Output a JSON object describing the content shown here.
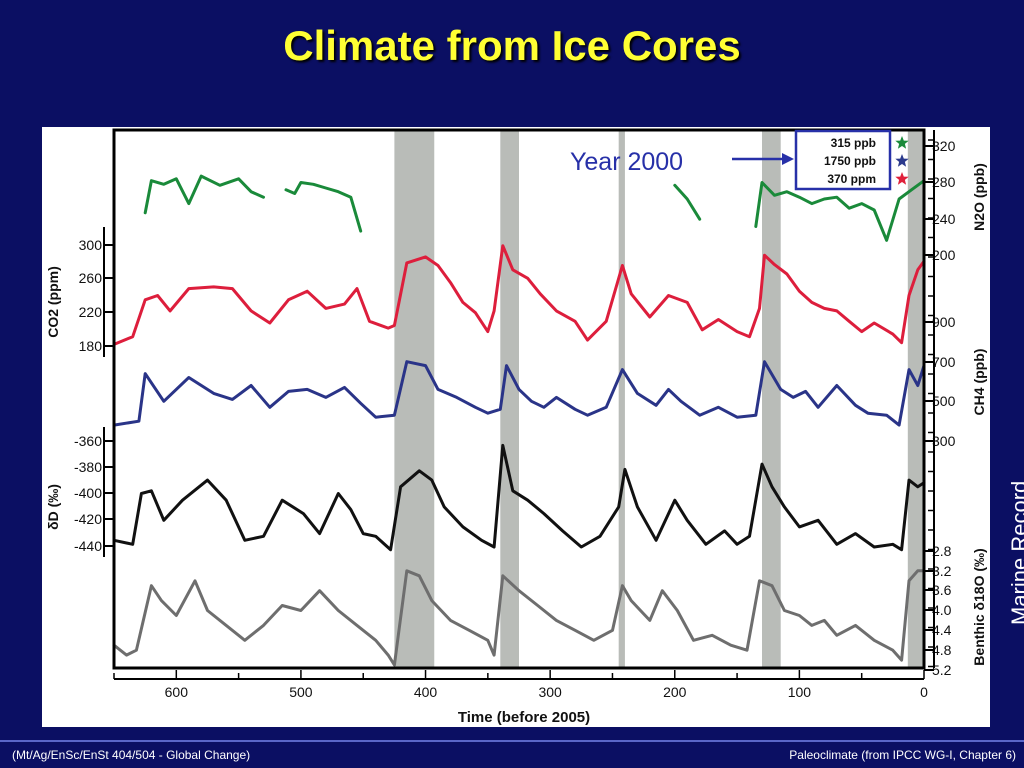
{
  "slide": {
    "title": "Climate from Ice Cores",
    "side_label": "Marine Record",
    "footer_left": "(Mt/Ag/EnSc/EnSt 404/504 - Global Change)",
    "footer_right": "Paleoclimate (from IPCC WG-I, Chapter 6)"
  },
  "chart_data": {
    "type": "line",
    "xlabel": "Time (before 2005)",
    "xlim": [
      650,
      0
    ],
    "x_ticks": [
      600,
      500,
      400,
      300,
      200,
      100,
      0
    ],
    "interglacial_bands": [
      [
        425,
        393
      ],
      [
        340,
        325
      ],
      [
        245,
        240
      ],
      [
        130,
        115
      ],
      [
        13,
        0
      ]
    ],
    "annotation": {
      "text": "Year 2000",
      "box": [
        "315 ppb",
        "1750 ppb",
        "370 ppm"
      ],
      "star_colors": [
        "#1a8a3a",
        "#2b3a8c",
        "#e0203a"
      ]
    },
    "axes": [
      {
        "name": "n2o",
        "side": "right",
        "label": "N2O (ppb)",
        "ticks": [
          "320",
          "280",
          "240",
          "200"
        ]
      },
      {
        "name": "co2",
        "side": "left",
        "label": "CO2 (ppm)",
        "ticks": [
          "300",
          "260",
          "220",
          "180"
        ]
      },
      {
        "name": "ch4",
        "side": "right",
        "label": "CH4 (ppb)",
        "ticks": [
          "900",
          "700",
          "500",
          "300"
        ]
      },
      {
        "name": "dd",
        "side": "left",
        "label": "δD (‰)",
        "ticks": [
          "-360",
          "-380",
          "-400",
          "-420",
          "-440"
        ]
      },
      {
        "name": "d18o",
        "side": "right",
        "label": "Benthic δ18O (‰)",
        "ticks": [
          "2.8",
          "3.2",
          "3.6",
          "4.0",
          "4.4",
          "4.8",
          "5.2"
        ]
      }
    ],
    "series": [
      {
        "key": "n2o",
        "color": "#1a8a3a",
        "unit_range": [
          200,
          320
        ],
        "segments": [
          [
            [
              625,
              245
            ],
            [
              620,
              280
            ],
            [
              610,
              276
            ],
            [
              600,
              282
            ],
            [
              590,
              255
            ],
            [
              580,
              285
            ],
            [
              565,
              275
            ],
            [
              550,
              282
            ],
            [
              540,
              268
            ],
            [
              530,
              262
            ]
          ],
          [
            [
              512,
              270
            ],
            [
              505,
              266
            ],
            [
              500,
              278
            ],
            [
              490,
              276
            ],
            [
              480,
              272
            ],
            [
              470,
              268
            ],
            [
              460,
              262
            ],
            [
              452,
              225
            ]
          ],
          [
            [
              200,
              275
            ],
            [
              190,
              260
            ],
            [
              180,
              238
            ]
          ],
          [
            [
              135,
              230
            ],
            [
              130,
              278
            ],
            [
              120,
              264
            ],
            [
              110,
              268
            ],
            [
              100,
              262
            ],
            [
              90,
              255
            ],
            [
              80,
              260
            ],
            [
              70,
              262
            ],
            [
              60,
              250
            ],
            [
              50,
              255
            ],
            [
              40,
              248
            ],
            [
              30,
              215
            ],
            [
              20,
              260
            ],
            [
              10,
              270
            ],
            [
              0,
              280
            ]
          ]
        ]
      },
      {
        "key": "co2",
        "color": "#dd1e3c",
        "unit_range": [
          180,
          300
        ],
        "points": [
          [
            650,
            183
          ],
          [
            635,
            192
          ],
          [
            625,
            235
          ],
          [
            615,
            240
          ],
          [
            605,
            222
          ],
          [
            590,
            248
          ],
          [
            570,
            250
          ],
          [
            555,
            248
          ],
          [
            540,
            222
          ],
          [
            525,
            208
          ],
          [
            510,
            235
          ],
          [
            495,
            245
          ],
          [
            480,
            225
          ],
          [
            465,
            230
          ],
          [
            455,
            248
          ],
          [
            445,
            210
          ],
          [
            430,
            202
          ],
          [
            425,
            205
          ],
          [
            415,
            278
          ],
          [
            400,
            285
          ],
          [
            390,
            275
          ],
          [
            380,
            255
          ],
          [
            370,
            232
          ],
          [
            360,
            220
          ],
          [
            350,
            198
          ],
          [
            345,
            222
          ],
          [
            338,
            298
          ],
          [
            330,
            270
          ],
          [
            318,
            260
          ],
          [
            308,
            242
          ],
          [
            295,
            222
          ],
          [
            280,
            210
          ],
          [
            270,
            188
          ],
          [
            255,
            210
          ],
          [
            242,
            275
          ],
          [
            235,
            242
          ],
          [
            220,
            215
          ],
          [
            205,
            240
          ],
          [
            190,
            232
          ],
          [
            178,
            200
          ],
          [
            165,
            212
          ],
          [
            150,
            198
          ],
          [
            140,
            192
          ],
          [
            132,
            225
          ],
          [
            128,
            287
          ],
          [
            120,
            276
          ],
          [
            110,
            265
          ],
          [
            100,
            245
          ],
          [
            90,
            232
          ],
          [
            80,
            225
          ],
          [
            70,
            222
          ],
          [
            60,
            210
          ],
          [
            50,
            198
          ],
          [
            40,
            208
          ],
          [
            25,
            195
          ],
          [
            18,
            185
          ],
          [
            12,
            240
          ],
          [
            5,
            270
          ],
          [
            0,
            280
          ]
        ]
      },
      {
        "key": "ch4",
        "color": "#2a3488",
        "unit_range": [
          300,
          900
        ],
        "points": [
          [
            650,
            380
          ],
          [
            630,
            400
          ],
          [
            625,
            640
          ],
          [
            610,
            500
          ],
          [
            590,
            620
          ],
          [
            570,
            540
          ],
          [
            555,
            510
          ],
          [
            540,
            580
          ],
          [
            525,
            470
          ],
          [
            510,
            550
          ],
          [
            495,
            560
          ],
          [
            480,
            520
          ],
          [
            465,
            570
          ],
          [
            452,
            490
          ],
          [
            440,
            420
          ],
          [
            425,
            430
          ],
          [
            415,
            700
          ],
          [
            400,
            680
          ],
          [
            390,
            560
          ],
          [
            375,
            520
          ],
          [
            360,
            470
          ],
          [
            350,
            440
          ],
          [
            340,
            460
          ],
          [
            335,
            680
          ],
          [
            325,
            560
          ],
          [
            315,
            500
          ],
          [
            305,
            470
          ],
          [
            295,
            520
          ],
          [
            280,
            460
          ],
          [
            270,
            430
          ],
          [
            255,
            470
          ],
          [
            242,
            660
          ],
          [
            230,
            540
          ],
          [
            215,
            480
          ],
          [
            205,
            560
          ],
          [
            195,
            500
          ],
          [
            180,
            430
          ],
          [
            165,
            470
          ],
          [
            150,
            420
          ],
          [
            135,
            430
          ],
          [
            128,
            700
          ],
          [
            115,
            560
          ],
          [
            105,
            520
          ],
          [
            95,
            550
          ],
          [
            85,
            470
          ],
          [
            70,
            580
          ],
          [
            55,
            480
          ],
          [
            45,
            440
          ],
          [
            30,
            430
          ],
          [
            20,
            380
          ],
          [
            12,
            660
          ],
          [
            5,
            580
          ],
          [
            0,
            680
          ]
        ]
      },
      {
        "key": "dd",
        "color": "#111111",
        "unit_range": [
          -440,
          -360
        ],
        "points": [
          [
            650,
            -435
          ],
          [
            635,
            -438
          ],
          [
            628,
            -400
          ],
          [
            620,
            -398
          ],
          [
            610,
            -420
          ],
          [
            595,
            -405
          ],
          [
            575,
            -390
          ],
          [
            560,
            -405
          ],
          [
            545,
            -435
          ],
          [
            530,
            -432
          ],
          [
            515,
            -405
          ],
          [
            498,
            -415
          ],
          [
            485,
            -430
          ],
          [
            470,
            -400
          ],
          [
            460,
            -412
          ],
          [
            450,
            -430
          ],
          [
            440,
            -432
          ],
          [
            428,
            -442
          ],
          [
            420,
            -395
          ],
          [
            405,
            -383
          ],
          [
            395,
            -390
          ],
          [
            385,
            -410
          ],
          [
            370,
            -425
          ],
          [
            355,
            -435
          ],
          [
            345,
            -440
          ],
          [
            338,
            -364
          ],
          [
            330,
            -398
          ],
          [
            318,
            -405
          ],
          [
            305,
            -415
          ],
          [
            290,
            -428
          ],
          [
            275,
            -440
          ],
          [
            260,
            -432
          ],
          [
            245,
            -410
          ],
          [
            240,
            -382
          ],
          [
            230,
            -410
          ],
          [
            215,
            -435
          ],
          [
            200,
            -405
          ],
          [
            190,
            -420
          ],
          [
            175,
            -438
          ],
          [
            160,
            -428
          ],
          [
            150,
            -438
          ],
          [
            140,
            -432
          ],
          [
            130,
            -378
          ],
          [
            122,
            -395
          ],
          [
            112,
            -410
          ],
          [
            100,
            -425
          ],
          [
            85,
            -420
          ],
          [
            70,
            -438
          ],
          [
            55,
            -430
          ],
          [
            40,
            -440
          ],
          [
            25,
            -438
          ],
          [
            18,
            -442
          ],
          [
            12,
            -390
          ],
          [
            5,
            -395
          ],
          [
            0,
            -392
          ]
        ]
      },
      {
        "key": "d18o",
        "color": "#6e6e6e",
        "unit_range": [
          5.2,
          2.8
        ],
        "points": [
          [
            650,
            4.7
          ],
          [
            640,
            4.9
          ],
          [
            632,
            4.8
          ],
          [
            620,
            3.5
          ],
          [
            612,
            3.8
          ],
          [
            600,
            4.1
          ],
          [
            585,
            3.4
          ],
          [
            575,
            4.0
          ],
          [
            560,
            4.3
          ],
          [
            545,
            4.6
          ],
          [
            530,
            4.3
          ],
          [
            515,
            3.9
          ],
          [
            500,
            4.0
          ],
          [
            485,
            3.6
          ],
          [
            470,
            4.0
          ],
          [
            455,
            4.3
          ],
          [
            440,
            4.6
          ],
          [
            430,
            4.9
          ],
          [
            425,
            5.1
          ],
          [
            415,
            3.2
          ],
          [
            405,
            3.3
          ],
          [
            395,
            3.8
          ],
          [
            380,
            4.2
          ],
          [
            365,
            4.4
          ],
          [
            350,
            4.6
          ],
          [
            345,
            4.9
          ],
          [
            338,
            3.3
          ],
          [
            325,
            3.6
          ],
          [
            310,
            3.9
          ],
          [
            295,
            4.2
          ],
          [
            280,
            4.4
          ],
          [
            265,
            4.6
          ],
          [
            250,
            4.4
          ],
          [
            242,
            3.5
          ],
          [
            235,
            3.8
          ],
          [
            220,
            4.2
          ],
          [
            210,
            3.6
          ],
          [
            198,
            4.0
          ],
          [
            185,
            4.6
          ],
          [
            170,
            4.5
          ],
          [
            155,
            4.7
          ],
          [
            142,
            4.8
          ],
          [
            132,
            3.4
          ],
          [
            122,
            3.5
          ],
          [
            112,
            4.0
          ],
          [
            100,
            4.1
          ],
          [
            90,
            4.3
          ],
          [
            80,
            4.2
          ],
          [
            70,
            4.5
          ],
          [
            55,
            4.3
          ],
          [
            40,
            4.6
          ],
          [
            25,
            4.8
          ],
          [
            18,
            5.0
          ],
          [
            12,
            3.4
          ],
          [
            5,
            3.2
          ],
          [
            0,
            3.2
          ]
        ]
      }
    ]
  }
}
